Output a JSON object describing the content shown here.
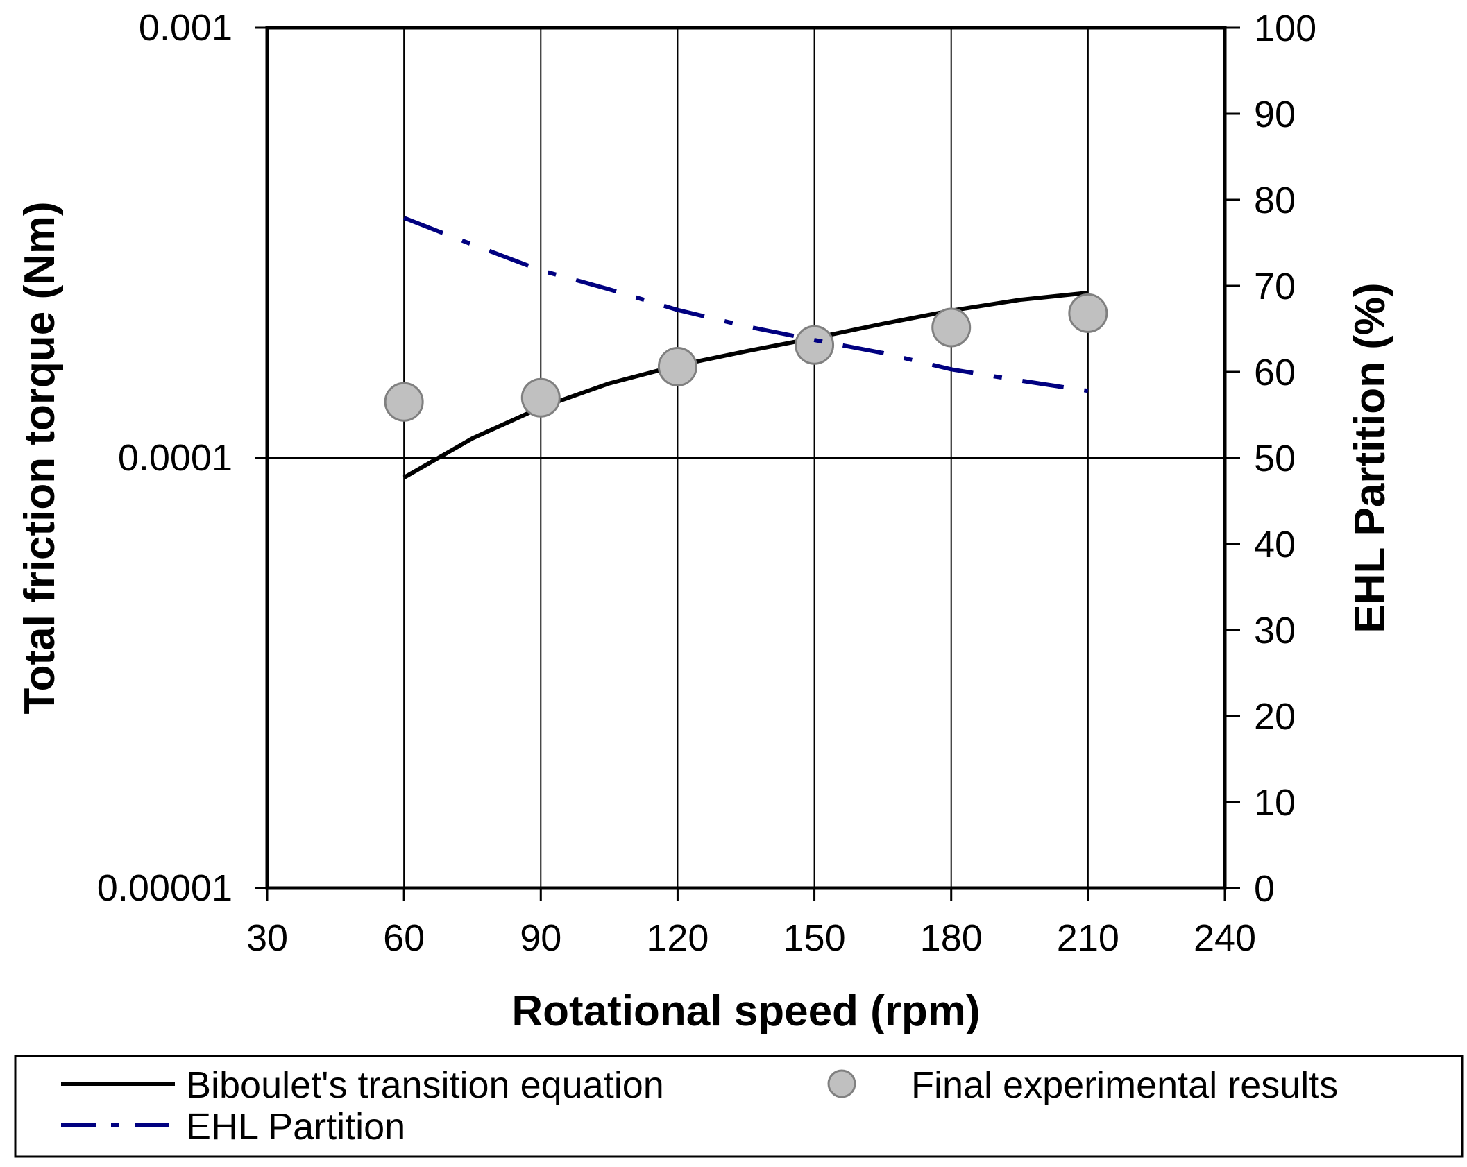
{
  "chart_data": {
    "type": "line",
    "title": "",
    "xlabel": "Rotational speed (rpm)",
    "ylabel": "Total friction torque (Nm)",
    "ylabel_right": "EHL Partition (%)",
    "xlim": [
      30,
      240
    ],
    "x_ticks": [
      30,
      60,
      90,
      120,
      150,
      180,
      210,
      240
    ],
    "x_tick_labels": [
      "30",
      "60",
      "90",
      "120",
      "150",
      "180",
      "210",
      "240"
    ],
    "ylim": [
      1e-05,
      0.001
    ],
    "y_scale": "log",
    "y_ticks": [
      1e-05,
      0.0001,
      0.001
    ],
    "y_tick_labels": [
      "0.00001",
      "0.0001",
      "0.001"
    ],
    "ylim_right": [
      0,
      100
    ],
    "y_ticks_right": [
      0,
      10,
      20,
      30,
      40,
      50,
      60,
      70,
      80,
      90,
      100
    ],
    "y_tick_labels_right": [
      "0",
      "10",
      "20",
      "30",
      "40",
      "50",
      "60",
      "70",
      "80",
      "90",
      "100"
    ],
    "grid": "vertical lines at x ticks, horizontal line at 0.0001",
    "legend_position": "bottom",
    "series": [
      {
        "name": "Biboulet's transition equation",
        "kind": "line",
        "axis": "left",
        "color": "#000000",
        "x": [
          60,
          75,
          90,
          105,
          120,
          135,
          150,
          165,
          180,
          195,
          210
        ],
        "values": [
          9e-05,
          0.000111,
          0.000131,
          0.000149,
          0.000164,
          0.000177,
          0.00019,
          0.000205,
          0.00022,
          0.000233,
          0.000242
        ]
      },
      {
        "name": "Final experimental results",
        "kind": "scatter",
        "axis": "left",
        "color": "#c0c0c0",
        "x": [
          60,
          90,
          120,
          150,
          180,
          210
        ],
        "values": [
          0.000135,
          0.000138,
          0.000163,
          0.000183,
          0.000201,
          0.000217
        ]
      },
      {
        "name": "EHL Partition",
        "kind": "line",
        "axis": "right",
        "color": "#000080",
        "x": [
          60,
          75,
          90,
          105,
          120,
          135,
          150,
          165,
          180,
          195,
          210
        ],
        "values": [
          77.9,
          74.8,
          71.8,
          69.6,
          67.2,
          65.3,
          63.7,
          62.2,
          60.3,
          59.0,
          57.8
        ]
      }
    ]
  }
}
